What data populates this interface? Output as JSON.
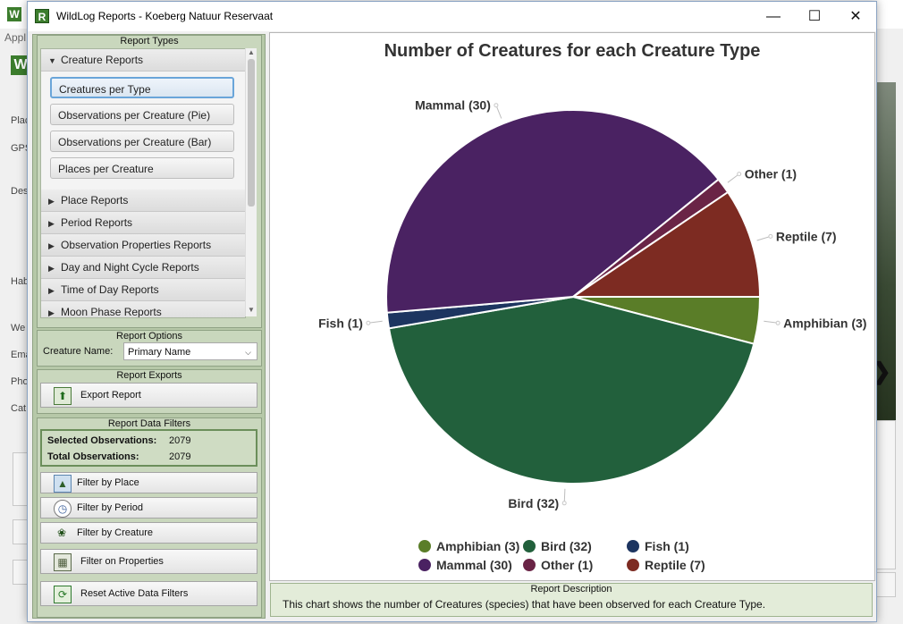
{
  "background_window": {
    "menu_text": "Appl",
    "field_labels": [
      "Plac",
      "GPS",
      "Des",
      "Hab",
      "We",
      "Ema",
      "Pho",
      "Cat"
    ]
  },
  "window": {
    "app_icon_letter": "R",
    "title": "WildLog Reports - Koeberg Natuur Reservaat",
    "minimize_glyph": "—",
    "maximize_glyph": "☐",
    "close_glyph": "✕"
  },
  "report_types": {
    "header": "Report Types",
    "groups": [
      {
        "label": "Creature Reports",
        "expanded": true,
        "items": [
          {
            "label": "Creatures per Type",
            "selected": true
          },
          {
            "label": "Observations per Creature (Pie)",
            "selected": false
          },
          {
            "label": "Observations per Creature (Bar)",
            "selected": false
          },
          {
            "label": "Places per Creature",
            "selected": false
          }
        ]
      },
      {
        "label": "Place Reports",
        "expanded": false
      },
      {
        "label": "Period Reports",
        "expanded": false
      },
      {
        "label": "Observation Properties Reports",
        "expanded": false
      },
      {
        "label": "Day and Night Cycle Reports",
        "expanded": false
      },
      {
        "label": "Time of Day Reports",
        "expanded": false
      },
      {
        "label": "Moon Phase Reports",
        "expanded": false
      }
    ]
  },
  "report_options": {
    "header": "Report Options",
    "creature_name_label": "Creature Name:",
    "creature_name_value": "Primary Name"
  },
  "report_exports": {
    "header": "Report Exports",
    "export_label": "Export Report"
  },
  "report_data_filters": {
    "header": "Report Data Filters",
    "selected_label": "Selected Observations:",
    "selected_value": "2079",
    "total_label": "Total Observations:",
    "total_value": "2079",
    "filter_place": "Filter by Place",
    "filter_period": "Filter by Period",
    "filter_creature": "Filter by Creature",
    "filter_properties": "Filter on Properties",
    "reset": "Reset Active Data Filters"
  },
  "chart_data": {
    "type": "pie",
    "title": "Number of Creatures for each Creature Type",
    "slices": [
      {
        "name": "Amphibian",
        "value": 3,
        "label": "Amphibian (3)",
        "color": "#5a7d28"
      },
      {
        "name": "Bird",
        "value": 32,
        "label": "Bird (32)",
        "color": "#22603c"
      },
      {
        "name": "Fish",
        "value": 1,
        "label": "Fish (1)",
        "color": "#1d3560"
      },
      {
        "name": "Mammal",
        "value": 30,
        "label": "Mammal (30)",
        "color": "#4a2262"
      },
      {
        "name": "Other",
        "value": 1,
        "label": "Other (1)",
        "color": "#6a2446"
      },
      {
        "name": "Reptile",
        "value": 7,
        "label": "Reptile (7)",
        "color": "#7d2b22"
      }
    ],
    "legend_placement": "bottom"
  },
  "description": {
    "header": "Report Description",
    "text": "This chart shows the number of Creatures (species) that have been observed for each Creature Type."
  }
}
